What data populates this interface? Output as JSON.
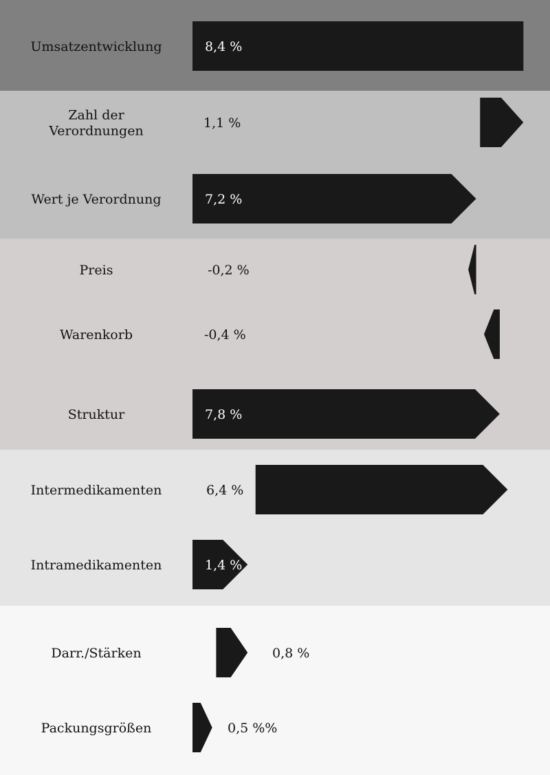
{
  "chart_data": {
    "type": "bar",
    "orientation": "horizontal",
    "title": "",
    "xlabel": "",
    "ylabel": "",
    "grid": false,
    "legend": "none",
    "categories": [
      "Umsatzentwicklung",
      "Zahl der Verordnungen",
      "Wert je Verordnung",
      "Preis",
      "Warenkorb",
      "Struktur",
      "Intermedikamenten",
      "Intramedikamenten",
      "Darr./Stärken",
      "Packungsgrößen"
    ],
    "category_lines": [
      [
        "Umsatzentwicklung"
      ],
      [
        "Zahl der",
        "Verordnungen"
      ],
      [
        "Wert je Verordnung"
      ],
      [
        "Preis"
      ],
      [
        "Warenkorb"
      ],
      [
        "Struktur"
      ],
      [
        "Intermedikamenten"
      ],
      [
        "Intramedikamenten"
      ],
      [
        "Darr./Stärken"
      ],
      [
        "Packungsgrößen"
      ]
    ],
    "values": [
      8.4,
      1.1,
      7.2,
      -0.2,
      -0.4,
      7.8,
      6.4,
      1.4,
      0.8,
      0.5
    ],
    "value_labels": [
      "8,4 %",
      "1,1 %",
      "7,2 %",
      "-0,2 %",
      "-0,4 %",
      "7,8 %",
      "6,4 %",
      "1,4 %",
      "0,8 %",
      "0,5 %%"
    ],
    "groups": [
      {
        "rows": [
          0
        ],
        "color": "#808080"
      },
      {
        "rows": [
          1,
          2
        ],
        "color": "#bfbfbf"
      },
      {
        "rows": [
          3,
          4,
          5
        ],
        "color": "#d3cfcf"
      },
      {
        "rows": [
          6,
          7
        ],
        "color": "#e5e5e5"
      },
      {
        "rows": [
          8,
          9
        ],
        "color": "#f7f7f7"
      }
    ],
    "bar_color": "#191919"
  }
}
